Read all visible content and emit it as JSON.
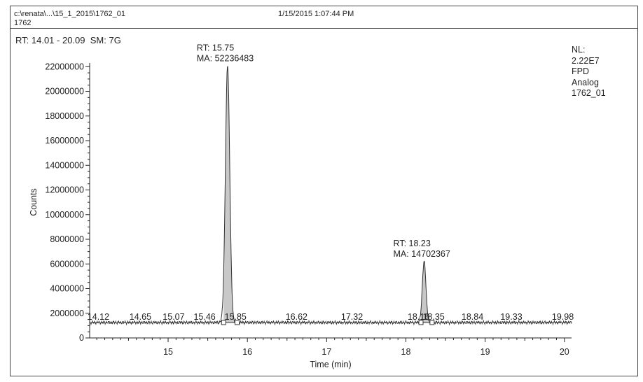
{
  "header": {
    "file_path": "c:\\renata\\...\\15_1_2015\\1762_01",
    "sample": "1762",
    "datetime": "1/15/2015 1:07:44 PM"
  },
  "subheader": {
    "rt_range": "RT: 14.01 - 20.09",
    "smoothing": "SM: 7G"
  },
  "info": {
    "nl_label": "NL:",
    "nl_value": "2.22E7",
    "detector": "FPD",
    "signal": "Analog",
    "file": "1762_01"
  },
  "chart_data": {
    "type": "line",
    "title": "",
    "xlabel": "Time (min)",
    "ylabel": "Counts",
    "xlim": [
      14.01,
      20.09
    ],
    "ylim": [
      0,
      22300000
    ],
    "x_ticks": [
      15,
      16,
      17,
      18,
      19,
      20
    ],
    "y_ticks": [
      0,
      2000000,
      4000000,
      6000000,
      8000000,
      10000000,
      12000000,
      14000000,
      16000000,
      18000000,
      20000000,
      22000000
    ],
    "baseline": 1250000,
    "peaks": [
      {
        "rt": 15.75,
        "height": 22100000,
        "start": 15.7,
        "end": 15.87,
        "rt_label": "RT: 15.75",
        "ma_label": "MA: 52236483"
      },
      {
        "rt": 18.23,
        "height": 6250000,
        "start": 18.19,
        "end": 18.33,
        "rt_label": "RT: 18.23",
        "ma_label": "MA: 14702367"
      }
    ],
    "baseline_labels": [
      {
        "x": 14.12,
        "text": "14.12"
      },
      {
        "x": 14.65,
        "text": "14.65"
      },
      {
        "x": 15.07,
        "text": "15.07"
      },
      {
        "x": 15.46,
        "text": "15.46"
      },
      {
        "x": 15.85,
        "text": "15.85"
      },
      {
        "x": 16.62,
        "text": "16.62"
      },
      {
        "x": 17.32,
        "text": "17.32"
      },
      {
        "x": 18.16,
        "text": "18.16"
      },
      {
        "x": 18.35,
        "text": "18.35"
      },
      {
        "x": 18.84,
        "text": "18.84"
      },
      {
        "x": 19.33,
        "text": "19.33"
      },
      {
        "x": 19.98,
        "text": "19.98"
      }
    ],
    "fill_color": "#c8c8c8",
    "line_color": "#333333"
  }
}
